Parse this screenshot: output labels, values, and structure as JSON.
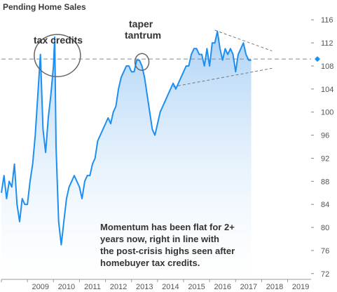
{
  "chart_data": {
    "type": "area",
    "title": "Pending Home Sales",
    "xlabel": "",
    "ylabel": "",
    "xlim": [
      2008.0,
      2019.9
    ],
    "ylim": [
      71,
      117
    ],
    "x_ticks": [
      "2009",
      "2010",
      "2011",
      "2012",
      "2013",
      "2014",
      "2015",
      "2016",
      "2017",
      "2018",
      "2019"
    ],
    "y_ticks": [
      "72",
      "76",
      "80",
      "84",
      "88",
      "92",
      "96",
      "100",
      "104",
      "108",
      "112",
      "116"
    ],
    "reference_level": 109.2,
    "grid": false,
    "series": [
      {
        "x": [
          2008.0,
          2008.1,
          2008.2,
          2008.3,
          2008.4,
          2008.5,
          2008.6,
          2008.7,
          2008.8,
          2008.9,
          2009.0,
          2009.1,
          2009.2,
          2009.3,
          2009.4,
          2009.5,
          2009.6,
          2009.7,
          2009.8,
          2009.9,
          2010.0,
          2010.05,
          2010.1,
          2010.2,
          2010.3,
          2010.35,
          2010.4,
          2010.5,
          2010.6,
          2010.7,
          2010.8,
          2010.9,
          2011.0,
          2011.1,
          2011.2,
          2011.3,
          2011.4,
          2011.5,
          2011.6,
          2011.7,
          2011.8,
          2011.9,
          2012.0,
          2012.1,
          2012.2,
          2012.3,
          2012.4,
          2012.5,
          2012.6,
          2012.7,
          2012.8,
          2012.9,
          2013.0,
          2013.1,
          2013.2,
          2013.3,
          2013.4,
          2013.5,
          2013.6,
          2013.7,
          2013.8,
          2013.9,
          2014.0,
          2014.1,
          2014.2,
          2014.3,
          2014.4,
          2014.5,
          2014.6,
          2014.7,
          2014.8,
          2014.9,
          2015.0,
          2015.1,
          2015.2,
          2015.3,
          2015.4,
          2015.5,
          2015.6,
          2015.7,
          2015.8,
          2015.9,
          2016.0,
          2016.1,
          2016.2,
          2016.3,
          2016.4,
          2016.5,
          2016.6,
          2016.7,
          2016.8,
          2016.9,
          2017.0,
          2017.1,
          2017.2,
          2017.3,
          2017.4,
          2017.5,
          2017.6
        ],
        "values": [
          86,
          89,
          85,
          88,
          87,
          91,
          84,
          81,
          85,
          84,
          84,
          88,
          91,
          96,
          103,
          110,
          97,
          93,
          99,
          103,
          108,
          113,
          94,
          81,
          77,
          79,
          81,
          85,
          87,
          88,
          89,
          88,
          87,
          85,
          88,
          89,
          89,
          91,
          92,
          95,
          96,
          97,
          98,
          99,
          98,
          100,
          101,
          104,
          106,
          107,
          108,
          108,
          107,
          107,
          109,
          109,
          108,
          106,
          103,
          100,
          97,
          96,
          98,
          100,
          101,
          102,
          103,
          104,
          105,
          104,
          105,
          106,
          107,
          108,
          108,
          110,
          111,
          111,
          110,
          110,
          108,
          111,
          108,
          112,
          112,
          114,
          111,
          109,
          111,
          110,
          111,
          110,
          107,
          110,
          111,
          112,
          110,
          109,
          109
        ]
      }
    ],
    "annotations": [
      "tax credits",
      "taper",
      "tantrum"
    ],
    "note_lines": [
      "Momentum has been flat for 2+",
      "years now, right in line with",
      "the post-crisis highs seen after",
      "homebuyer tax credits."
    ],
    "colors": {
      "line": "#1e8ff0",
      "fill_top": "#a8d0f5",
      "fill_bottom": "#ffffff",
      "reference": "#8a8a8a",
      "marker": "#1e8ff0"
    }
  }
}
